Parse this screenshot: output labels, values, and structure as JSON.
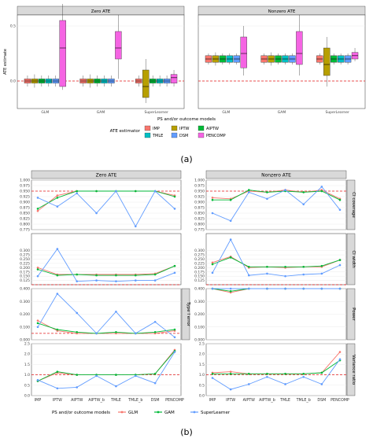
{
  "panel_a": {
    "label": "(a)",
    "facets": [
      "Zero ATE",
      "Nonzero ATE"
    ],
    "ylabel": "ATE estimate",
    "xlabel": "PS and/or outcome models",
    "legend_title": "ATE estimator",
    "estimators": [
      {
        "name": "IMP",
        "color": "#F8766D"
      },
      {
        "name": "IPTW",
        "color": "#B79F00"
      },
      {
        "name": "AIPTW",
        "color": "#00BA38"
      },
      {
        "name": "TMLE",
        "color": "#00BFC4"
      },
      {
        "name": "DSM",
        "color": "#619CFF"
      },
      {
        "name": "PENCOMP",
        "color": "#F564E3"
      }
    ]
  },
  "panel_b": {
    "label": "(b)",
    "facets": [
      "Zero ATE",
      "Nonzero ATE"
    ],
    "xlabel": "",
    "legend_title": "PS and/or outcome models",
    "categories": [
      "IMP",
      "IPTW",
      "AIPTW",
      "AIPTW_b",
      "TMLE",
      "TMLE_b",
      "DSM",
      "PENCOMP"
    ],
    "models": [
      {
        "name": "GLM",
        "color": "#F8766D"
      },
      {
        "name": "GAM",
        "color": "#00BA38"
      },
      {
        "name": "SuperLearner",
        "color": "#619CFF"
      }
    ],
    "rows": [
      "CI coverage",
      "CI width",
      "Type I error / Power",
      "Variance ratio"
    ],
    "row_strips_right": [
      "CI coverage",
      "CI width",
      "Power",
      "Variance ratio"
    ],
    "row_strips_left": [
      "",
      "",
      "Type I error",
      ""
    ],
    "row_ylabels_left": [
      "",
      "",
      "Type I error",
      ""
    ]
  },
  "chart_data": [
    {
      "type": "box",
      "title": "",
      "facets": [
        "Zero ATE",
        "Nonzero ATE"
      ],
      "categories": [
        "GLM",
        "GAM",
        "SuperLearner"
      ],
      "series_names": [
        "IMP",
        "IPTW",
        "AIPTW",
        "TMLE",
        "DSM",
        "PENCOMP"
      ],
      "reference_line": {
        "Zero ATE": 0.0,
        "Nonzero ATE": 0.0
      },
      "ylim": [
        -0.25,
        0.6
      ],
      "yticks": [
        -0.5,
        0.0,
        0.5
      ],
      "boxes": {
        "Zero ATE": {
          "GLM": [
            [
              -0.05,
              -0.02,
              0.0,
              0.02,
              0.05
            ],
            [
              -0.06,
              -0.02,
              0.0,
              0.02,
              0.06
            ],
            [
              -0.05,
              -0.02,
              0.0,
              0.02,
              0.05
            ],
            [
              -0.05,
              -0.02,
              0.0,
              0.02,
              0.05
            ],
            [
              -0.05,
              -0.02,
              0.0,
              0.02,
              0.05
            ],
            [
              -0.08,
              -0.05,
              0.3,
              0.55,
              0.7
            ]
          ],
          "GAM": [
            [
              -0.05,
              -0.02,
              0.0,
              0.02,
              0.05
            ],
            [
              -0.06,
              -0.02,
              0.0,
              0.02,
              0.06
            ],
            [
              -0.05,
              -0.02,
              0.0,
              0.02,
              0.05
            ],
            [
              -0.05,
              -0.02,
              0.0,
              0.02,
              0.05
            ],
            [
              -0.05,
              -0.02,
              0.0,
              0.02,
              0.05
            ],
            [
              0.02,
              0.2,
              0.3,
              0.45,
              0.6
            ]
          ],
          "SuperLearner": [
            [
              -0.05,
              -0.02,
              0.0,
              0.02,
              0.05
            ],
            [
              -0.2,
              -0.15,
              -0.05,
              0.1,
              0.2
            ],
            [
              -0.05,
              -0.02,
              0.0,
              0.02,
              0.05
            ],
            [
              -0.05,
              -0.02,
              0.0,
              0.02,
              0.05
            ],
            [
              -0.05,
              -0.02,
              0.0,
              0.02,
              0.05
            ],
            [
              -0.05,
              -0.02,
              0.03,
              0.06,
              0.1
            ]
          ]
        },
        "Nonzero ATE": {
          "GLM": [
            [
              0.15,
              0.17,
              0.2,
              0.23,
              0.25
            ],
            [
              0.14,
              0.17,
              0.2,
              0.23,
              0.26
            ],
            [
              0.15,
              0.17,
              0.2,
              0.23,
              0.25
            ],
            [
              0.15,
              0.17,
              0.2,
              0.23,
              0.25
            ],
            [
              0.15,
              0.17,
              0.2,
              0.23,
              0.25
            ],
            [
              0.05,
              0.12,
              0.25,
              0.4,
              0.5
            ]
          ],
          "GAM": [
            [
              0.15,
              0.17,
              0.2,
              0.23,
              0.25
            ],
            [
              0.14,
              0.17,
              0.2,
              0.23,
              0.26
            ],
            [
              0.15,
              0.17,
              0.2,
              0.23,
              0.25
            ],
            [
              0.15,
              0.17,
              0.2,
              0.23,
              0.25
            ],
            [
              0.15,
              0.17,
              0.2,
              0.23,
              0.25
            ],
            [
              0.05,
              0.15,
              0.25,
              0.45,
              0.6
            ]
          ],
          "SuperLearner": [
            [
              0.15,
              0.17,
              0.2,
              0.23,
              0.25
            ],
            [
              -0.05,
              0.05,
              0.15,
              0.3,
              0.4
            ],
            [
              0.15,
              0.17,
              0.2,
              0.23,
              0.25
            ],
            [
              0.15,
              0.17,
              0.2,
              0.23,
              0.25
            ],
            [
              0.15,
              0.17,
              0.2,
              0.23,
              0.25
            ],
            [
              0.18,
              0.2,
              0.23,
              0.26,
              0.3
            ]
          ]
        }
      }
    },
    {
      "type": "line",
      "title": "",
      "facets": [
        "Zero ATE",
        "Nonzero ATE"
      ],
      "categories": [
        "IMP",
        "IPTW",
        "AIPTW",
        "AIPTW_b",
        "TMLE",
        "TMLE_b",
        "DSM",
        "PENCOMP"
      ],
      "series_names": [
        "GLM",
        "GAM",
        "SuperLearner"
      ],
      "panels": [
        {
          "row": "CI coverage",
          "ylim": [
            0.775,
            1.0
          ],
          "yticks": [
            0.775,
            0.8,
            0.825,
            0.85,
            0.875,
            0.9,
            0.925,
            0.95,
            0.975,
            1.0
          ],
          "reference_line": 0.95,
          "Zero ATE": {
            "GLM": [
              0.86,
              0.93,
              0.95,
              0.95,
              0.95,
              0.95,
              0.95,
              0.93
            ],
            "GAM": [
              0.87,
              0.92,
              0.95,
              0.95,
              0.95,
              0.95,
              0.95,
              0.925
            ],
            "SuperLearner": [
              0.92,
              0.88,
              0.94,
              0.85,
              0.95,
              0.79,
              0.95,
              0.87
            ]
          },
          "Nonzero ATE": {
            "GLM": [
              0.92,
              0.915,
              0.95,
              0.945,
              0.955,
              0.945,
              0.955,
              0.915
            ],
            "GAM": [
              0.91,
              0.91,
              0.955,
              0.945,
              0.95,
              0.945,
              0.95,
              0.91
            ],
            "SuperLearner": [
              0.85,
              0.815,
              0.945,
              0.915,
              0.955,
              0.89,
              0.97,
              0.865
            ]
          }
        },
        {
          "row": "CI width",
          "ylim": [
            0.1,
            0.4
          ],
          "yticks": [
            0.125,
            0.15,
            0.175,
            0.2,
            0.225,
            0.25,
            0.275,
            0.3
          ],
          "reference_line": 0.1,
          "Zero ATE": {
            "GLM": [
              0.2,
              0.16,
              0.16,
              0.16,
              0.16,
              0.16,
              0.165,
              0.21
            ],
            "GAM": [
              0.19,
              0.155,
              0.16,
              0.155,
              0.155,
              0.155,
              0.16,
              0.21
            ],
            "SuperLearner": [
              0.15,
              0.31,
              0.12,
              0.125,
              0.12,
              0.125,
              0.125,
              0.17
            ]
          },
          "Nonzero ATE": {
            "GLM": [
              0.23,
              0.265,
              0.2,
              0.205,
              0.2,
              0.205,
              0.205,
              0.245
            ],
            "GAM": [
              0.22,
              0.26,
              0.205,
              0.205,
              0.205,
              0.205,
              0.21,
              0.245
            ],
            "SuperLearner": [
              0.17,
              0.365,
              0.155,
              0.165,
              0.15,
              0.16,
              0.165,
              0.215
            ]
          }
        },
        {
          "row": "Type I error / Power",
          "ylim": [
            0.0,
            0.4
          ],
          "yticks": [
            0.0,
            0.1,
            0.2,
            0.3,
            0.4
          ],
          "reference_line": {
            "Zero ATE": 0.05,
            "Nonzero ATE": 0.8
          },
          "Zero ATE": {
            "GLM": [
              0.15,
              0.07,
              0.05,
              0.05,
              0.05,
              0.05,
              0.05,
              0.07
            ],
            "GAM": [
              0.13,
              0.08,
              0.06,
              0.05,
              0.06,
              0.05,
              0.06,
              0.08
            ],
            "SuperLearner": [
              0.1,
              0.36,
              0.21,
              0.05,
              0.22,
              0.05,
              0.14,
              0.02
            ]
          },
          "Nonzero ATE": {
            "GLM": [
              0.6,
              0.37,
              0.44,
              0.44,
              0.44,
              0.44,
              0.45,
              0.48
            ],
            "GAM": [
              0.62,
              0.38,
              0.55,
              0.61,
              0.58,
              0.61,
              0.52,
              0.52
            ],
            "SuperLearner": [
              0.97,
              0.5,
              0.98,
              0.98,
              0.98,
              0.98,
              0.97,
              0.46
            ]
          }
        },
        {
          "row": "Variance ratio",
          "ylim": [
            0.0,
            2.5
          ],
          "yticks": [
            0.0,
            0.5,
            1.0,
            1.5,
            2.0,
            2.5
          ],
          "reference_line": 1.0,
          "Zero ATE": {
            "GLM": [
              0.7,
              1.1,
              1.0,
              1.0,
              1.0,
              1.0,
              1.05,
              2.2
            ],
            "GAM": [
              0.7,
              1.15,
              1.0,
              1.0,
              1.0,
              1.0,
              1.05,
              2.15
            ],
            "SuperLearner": [
              0.75,
              0.35,
              0.4,
              0.95,
              0.45,
              0.95,
              0.6,
              2.1
            ]
          },
          "Nonzero ATE": {
            "GLM": [
              1.1,
              1.15,
              1.05,
              1.05,
              1.05,
              1.05,
              1.1,
              2.1
            ],
            "GAM": [
              1.05,
              1.05,
              1.05,
              1.05,
              1.05,
              1.05,
              1.1,
              1.7
            ],
            "SuperLearner": [
              0.85,
              0.3,
              0.55,
              0.9,
              0.55,
              0.9,
              0.55,
              1.75
            ]
          }
        }
      ]
    }
  ]
}
